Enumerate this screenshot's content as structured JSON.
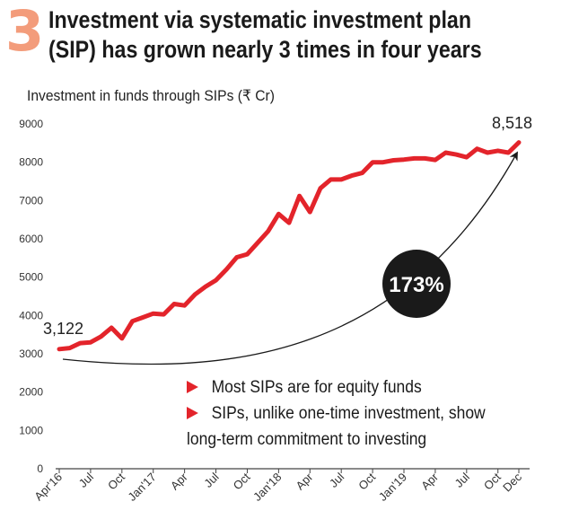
{
  "header": {
    "number": "3",
    "title_line1": "Investment via systematic investment plan",
    "title_line2": "(SIP) has grown nearly 3 times in four years",
    "subtitle": "Investment in funds through SIPs (₹ Cr)"
  },
  "annotations": {
    "start_value": "3,122",
    "end_value": "8,518",
    "growth": "173%"
  },
  "notes": {
    "note1": "Most SIPs are for equity funds",
    "note2_line1": "SIPs, unlike one-time investment, show",
    "note2_line2": "long-term commitment to investing"
  },
  "colors": {
    "line": "#e3242b",
    "accent_number": "#f39c7b",
    "badge": "#1a1a1a",
    "axis": "#444444"
  },
  "chart_data": {
    "type": "line",
    "title": "Investment via systematic investment plan (SIP) has grown nearly 3 times in four years",
    "ylabel": "Investment in funds through SIPs (₹ Cr)",
    "ylim": [
      0,
      9000
    ],
    "yticks": [
      "0",
      "1000",
      "2000",
      "3000",
      "4000",
      "5000",
      "6000",
      "7000",
      "8000",
      "9000"
    ],
    "x_tick_labels": [
      {
        "label": "Apr'16",
        "index": 0
      },
      {
        "label": "Jul",
        "index": 3
      },
      {
        "label": "Oct",
        "index": 6
      },
      {
        "label": "Jan'17",
        "index": 9
      },
      {
        "label": "Apr",
        "index": 12
      },
      {
        "label": "Jul",
        "index": 15
      },
      {
        "label": "Oct",
        "index": 18
      },
      {
        "label": "Jan'18",
        "index": 21
      },
      {
        "label": "Apr",
        "index": 24
      },
      {
        "label": "Jul",
        "index": 27
      },
      {
        "label": "Oct",
        "index": 30
      },
      {
        "label": "Jan'19",
        "index": 33
      },
      {
        "label": "Apr",
        "index": 36
      },
      {
        "label": "Jul",
        "index": 39
      },
      {
        "label": "Oct",
        "index": 42
      },
      {
        "label": "Dec",
        "index": 44
      }
    ],
    "series": [
      {
        "values": [
          3122,
          3150,
          3280,
          3300,
          3450,
          3680,
          3400,
          3850,
          3950,
          4050,
          4030,
          4300,
          4260,
          4550,
          4750,
          4920,
          5200,
          5520,
          5600,
          5900,
          6200,
          6650,
          6420,
          7120,
          6700,
          7320,
          7550,
          7550,
          7650,
          7720,
          8000,
          8000,
          8050,
          8070,
          8100,
          8100,
          8060,
          8250,
          8200,
          8130,
          8350,
          8250,
          8300,
          8250,
          8518
        ]
      }
    ]
  }
}
